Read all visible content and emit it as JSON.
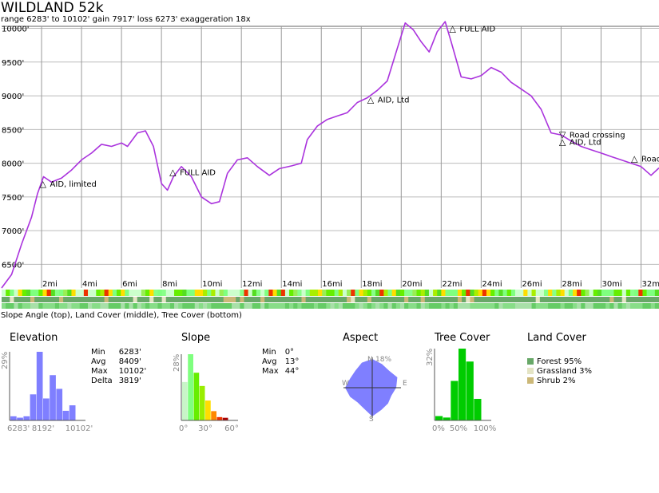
{
  "title": "WILDLAND 52k",
  "subtitle": "range 6283' to 10102'  gain 7917'  loss 6273'  exaggeration 18x",
  "caption": "Slope Angle (top), Land Cover (middle), Tree Cover (bottom)",
  "chart_data": {
    "type": "line",
    "xlim": [
      0,
      32.9
    ],
    "ylim": [
      6150,
      10030
    ],
    "x_ticks": [
      2,
      4,
      6,
      8,
      10,
      12,
      14,
      16,
      18,
      20,
      22,
      24,
      26,
      28,
      30,
      32
    ],
    "x_tick_labels": [
      "2mi",
      "4mi",
      "6mi",
      "8mi",
      "10mi",
      "12mi",
      "14mi",
      "16mi",
      "18mi",
      "20mi",
      "22mi",
      "24mi",
      "26mi",
      "28mi",
      "30mi",
      "32mi"
    ],
    "y_ticks": [
      6500,
      7000,
      7500,
      8000,
      8500,
      9000,
      9500,
      10000
    ],
    "y_tick_labels": [
      "6500'",
      "7000'",
      "7500'",
      "8000'",
      "8500'",
      "9000'",
      "9500'",
      "10000'"
    ],
    "line_color": "#aa33dd",
    "profile": [
      [
        0,
        6150
      ],
      [
        0.5,
        6350
      ],
      [
        1,
        6800
      ],
      [
        1.5,
        7200
      ],
      [
        1.8,
        7550
      ],
      [
        2.1,
        7800
      ],
      [
        2.5,
        7720
      ],
      [
        3,
        7780
      ],
      [
        3.5,
        7900
      ],
      [
        4,
        8050
      ],
      [
        4.5,
        8150
      ],
      [
        5,
        8280
      ],
      [
        5.5,
        8250
      ],
      [
        6,
        8300
      ],
      [
        6.3,
        8250
      ],
      [
        6.8,
        8450
      ],
      [
        7.2,
        8480
      ],
      [
        7.6,
        8250
      ],
      [
        8,
        7700
      ],
      [
        8.3,
        7600
      ],
      [
        8.6,
        7800
      ],
      [
        9,
        7950
      ],
      [
        9.5,
        7800
      ],
      [
        10,
        7500
      ],
      [
        10.5,
        7400
      ],
      [
        10.9,
        7430
      ],
      [
        11.3,
        7850
      ],
      [
        11.8,
        8050
      ],
      [
        12.3,
        8080
      ],
      [
        12.8,
        7950
      ],
      [
        13.4,
        7820
      ],
      [
        13.9,
        7920
      ],
      [
        14.5,
        7960
      ],
      [
        15,
        8000
      ],
      [
        15.3,
        8350
      ],
      [
        15.8,
        8550
      ],
      [
        16.3,
        8650
      ],
      [
        16.8,
        8700
      ],
      [
        17.3,
        8750
      ],
      [
        17.8,
        8900
      ],
      [
        18.3,
        8970
      ],
      [
        18.8,
        9080
      ],
      [
        19.3,
        9220
      ],
      [
        19.8,
        9700
      ],
      [
        20.2,
        10080
      ],
      [
        20.6,
        9980
      ],
      [
        21,
        9800
      ],
      [
        21.4,
        9650
      ],
      [
        21.8,
        9950
      ],
      [
        22.2,
        10100
      ],
      [
        22.5,
        9800
      ],
      [
        23,
        9280
      ],
      [
        23.5,
        9250
      ],
      [
        24,
        9300
      ],
      [
        24.5,
        9420
      ],
      [
        25,
        9350
      ],
      [
        25.5,
        9200
      ],
      [
        26,
        9100
      ],
      [
        26.5,
        9000
      ],
      [
        27,
        8800
      ],
      [
        27.5,
        8450
      ],
      [
        28,
        8420
      ],
      [
        28.5,
        8330
      ],
      [
        29,
        8250
      ],
      [
        29.5,
        8200
      ],
      [
        30,
        8150
      ],
      [
        30.5,
        8100
      ],
      [
        31,
        8050
      ],
      [
        31.5,
        8000
      ],
      [
        32,
        7950
      ],
      [
        32.5,
        7820
      ],
      [
        32.9,
        7930
      ]
    ],
    "annotations": [
      {
        "x": 2.1,
        "y": 7700,
        "symbol": "△",
        "label": "AID, limited"
      },
      {
        "x": 8.6,
        "y": 7870,
        "symbol": "△",
        "label": "FULL AID"
      },
      {
        "x": 18.5,
        "y": 8950,
        "symbol": "△",
        "label": "AID, Ltd"
      },
      {
        "x": 22.6,
        "y": 10000,
        "symbol": "△",
        "label": "FULL AID"
      },
      {
        "x": 28.1,
        "y": 8430,
        "symbol": "▽",
        "label": "Road crossing"
      },
      {
        "x": 28.1,
        "y": 8320,
        "symbol": "△",
        "label": "AID, Ltd"
      },
      {
        "x": 31.7,
        "y": 8070,
        "symbol": "△",
        "label": "Road c"
      }
    ]
  },
  "panels": {
    "elevation": {
      "title": "Elevation",
      "y_label": "29%",
      "x_labels": [
        "6283'",
        "8192'",
        "10102'"
      ],
      "bar_color": "#7f7fff",
      "bars": [
        0.06,
        0.04,
        0.06,
        0.38,
        1.0,
        0.32,
        0.66,
        0.46,
        0.14,
        0.22
      ],
      "stats": [
        [
          "Min",
          "6283'"
        ],
        [
          "Avg",
          "8409'"
        ],
        [
          "Max",
          "10102'"
        ],
        [
          "Delta",
          "3819'"
        ]
      ]
    },
    "slope": {
      "title": "Slope",
      "y_label": "28%",
      "x_labels": [
        "0°",
        "30°",
        "60°"
      ],
      "bars": [
        0.58,
        1.0,
        0.72,
        0.52,
        0.3,
        0.14,
        0.05,
        0.04
      ],
      "bar_colors": [
        "#c8f5c8",
        "#7fff7f",
        "#66ee00",
        "#99ee00",
        "#ffdd00",
        "#ff8800",
        "#ee3300",
        "#aa0000"
      ],
      "stats": [
        [
          "Min",
          "0°"
        ],
        [
          "Avg",
          "13°"
        ],
        [
          "Max",
          "44°"
        ]
      ]
    },
    "aspect": {
      "title": "Aspect",
      "labels": {
        "n": "N",
        "e": "E",
        "s": "S",
        "w": "W",
        "pct": "18%"
      },
      "color": "#7f7fff"
    },
    "tree_cover": {
      "title": "Tree Cover",
      "y_label": "32%",
      "x_labels": [
        "0%",
        "50%",
        "100%"
      ],
      "bars": [
        0.06,
        0.04,
        0.55,
        1.0,
        0.82,
        0.3
      ],
      "bar_color": "#00cc00"
    },
    "land_cover": {
      "title": "Land Cover",
      "items": [
        {
          "label": "Forest 95%",
          "color": "#68a868"
        },
        {
          "label": "Grassland 3%",
          "color": "#e4e4c4"
        },
        {
          "label": "Shrub 2%",
          "color": "#ccb878"
        }
      ]
    }
  }
}
